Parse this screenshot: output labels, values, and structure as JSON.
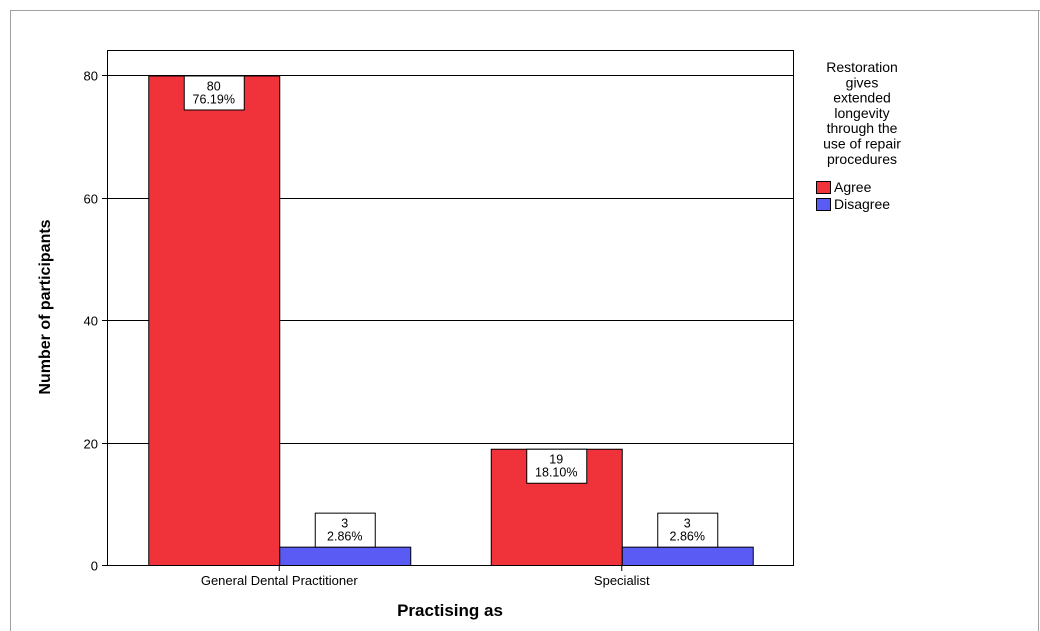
{
  "chart_data": {
    "type": "bar",
    "categories": [
      "General Dental Practitioner",
      "Specialist"
    ],
    "series": [
      {
        "name": "Agree",
        "color": "#f0333a",
        "values": [
          80,
          19
        ],
        "labels": [
          [
            "80",
            "76.19%"
          ],
          [
            "19",
            "18.10%"
          ]
        ]
      },
      {
        "name": "Disagree",
        "color": "#5a5af5",
        "values": [
          3,
          3
        ],
        "labels": [
          [
            "3",
            "2.86%"
          ],
          [
            "3",
            "2.86%"
          ]
        ]
      }
    ],
    "xlabel": "Practising as",
    "ylabel": "Number of participants",
    "ylim": [
      0,
      84
    ],
    "yticks": [
      0,
      20,
      40,
      60,
      80
    ],
    "grid": true,
    "legend": {
      "title": [
        "Restoration",
        "gives",
        "extended",
        "longevity",
        "through the",
        "use of repair",
        "procedures"
      ],
      "placement": "right"
    }
  }
}
